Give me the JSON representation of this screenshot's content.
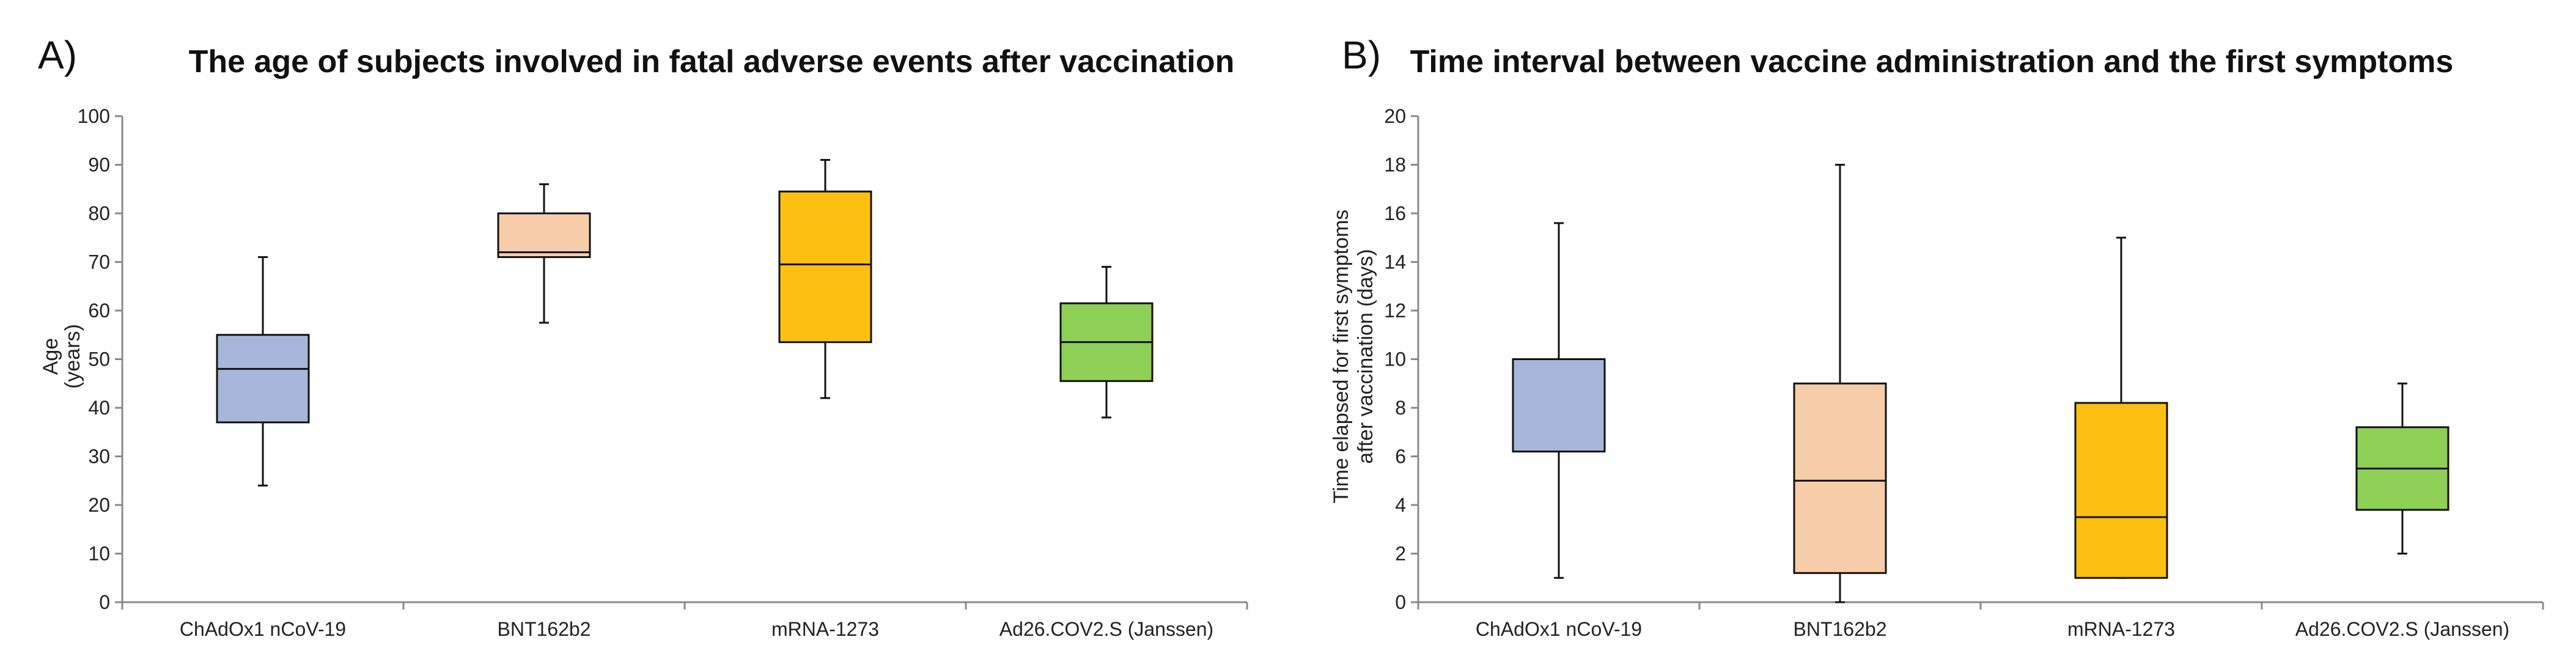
{
  "chart_data": [
    {
      "type": "box",
      "panel_label": "A)",
      "title": "The age of subjects involved in fatal adverse events after vaccination",
      "ylabel": [
        "Age",
        "(years)"
      ],
      "xlabel": "",
      "ylim": [
        0,
        100
      ],
      "ytick_step": 10,
      "grid": false,
      "categories": [
        "ChAdOx1 nCoV-19",
        "BNT162b2",
        "mRNA-1273",
        "Ad26.COV2.S (Janssen)"
      ],
      "series": [
        {
          "name": "ChAdOx1 nCoV-19",
          "min": 24,
          "q1": 37,
          "median": 48,
          "q3": 55,
          "max": 71,
          "color": "#A7B6DA"
        },
        {
          "name": "BNT162b2",
          "min": 57.5,
          "q1": 71,
          "median": 72,
          "q3": 80,
          "max": 86,
          "color": "#F7CDA9"
        },
        {
          "name": "mRNA-1273",
          "min": 42,
          "q1": 53.5,
          "median": 69.5,
          "q3": 84.5,
          "max": 91,
          "color": "#FDC010"
        },
        {
          "name": "Ad26.COV2.S (Janssen)",
          "min": 38,
          "q1": 45.5,
          "median": 53.5,
          "q3": 61.5,
          "max": 69,
          "color": "#8DD055"
        }
      ]
    },
    {
      "type": "box",
      "panel_label": "B)",
      "title": "Time interval between vaccine administration and the first symptoms",
      "ylabel": [
        "Time elapsed for first symptoms",
        "after vaccination (days)"
      ],
      "xlabel": "",
      "ylim": [
        0,
        20
      ],
      "ytick_step": 2,
      "grid": false,
      "categories": [
        "ChAdOx1 nCoV-19",
        "BNT162b2",
        "mRNA-1273",
        "Ad26.COV2.S (Janssen)"
      ],
      "series": [
        {
          "name": "ChAdOx1 nCoV-19",
          "min": 1,
          "q1": 6.2,
          "median": 10,
          "q3": 10,
          "max": 15.6,
          "color": "#A7B6DA"
        },
        {
          "name": "BNT162b2",
          "min": 0,
          "q1": 1.2,
          "median": 5,
          "q3": 9,
          "max": 18,
          "color": "#F7CDA9"
        },
        {
          "name": "mRNA-1273",
          "min": 1,
          "q1": 1,
          "median": 3.5,
          "q3": 8.2,
          "max": 15,
          "color": "#FDC010"
        },
        {
          "name": "Ad26.COV2.S (Janssen)",
          "min": 2,
          "q1": 3.8,
          "median": 5.5,
          "q3": 7.2,
          "max": 9,
          "color": "#8DD055"
        }
      ]
    }
  ]
}
